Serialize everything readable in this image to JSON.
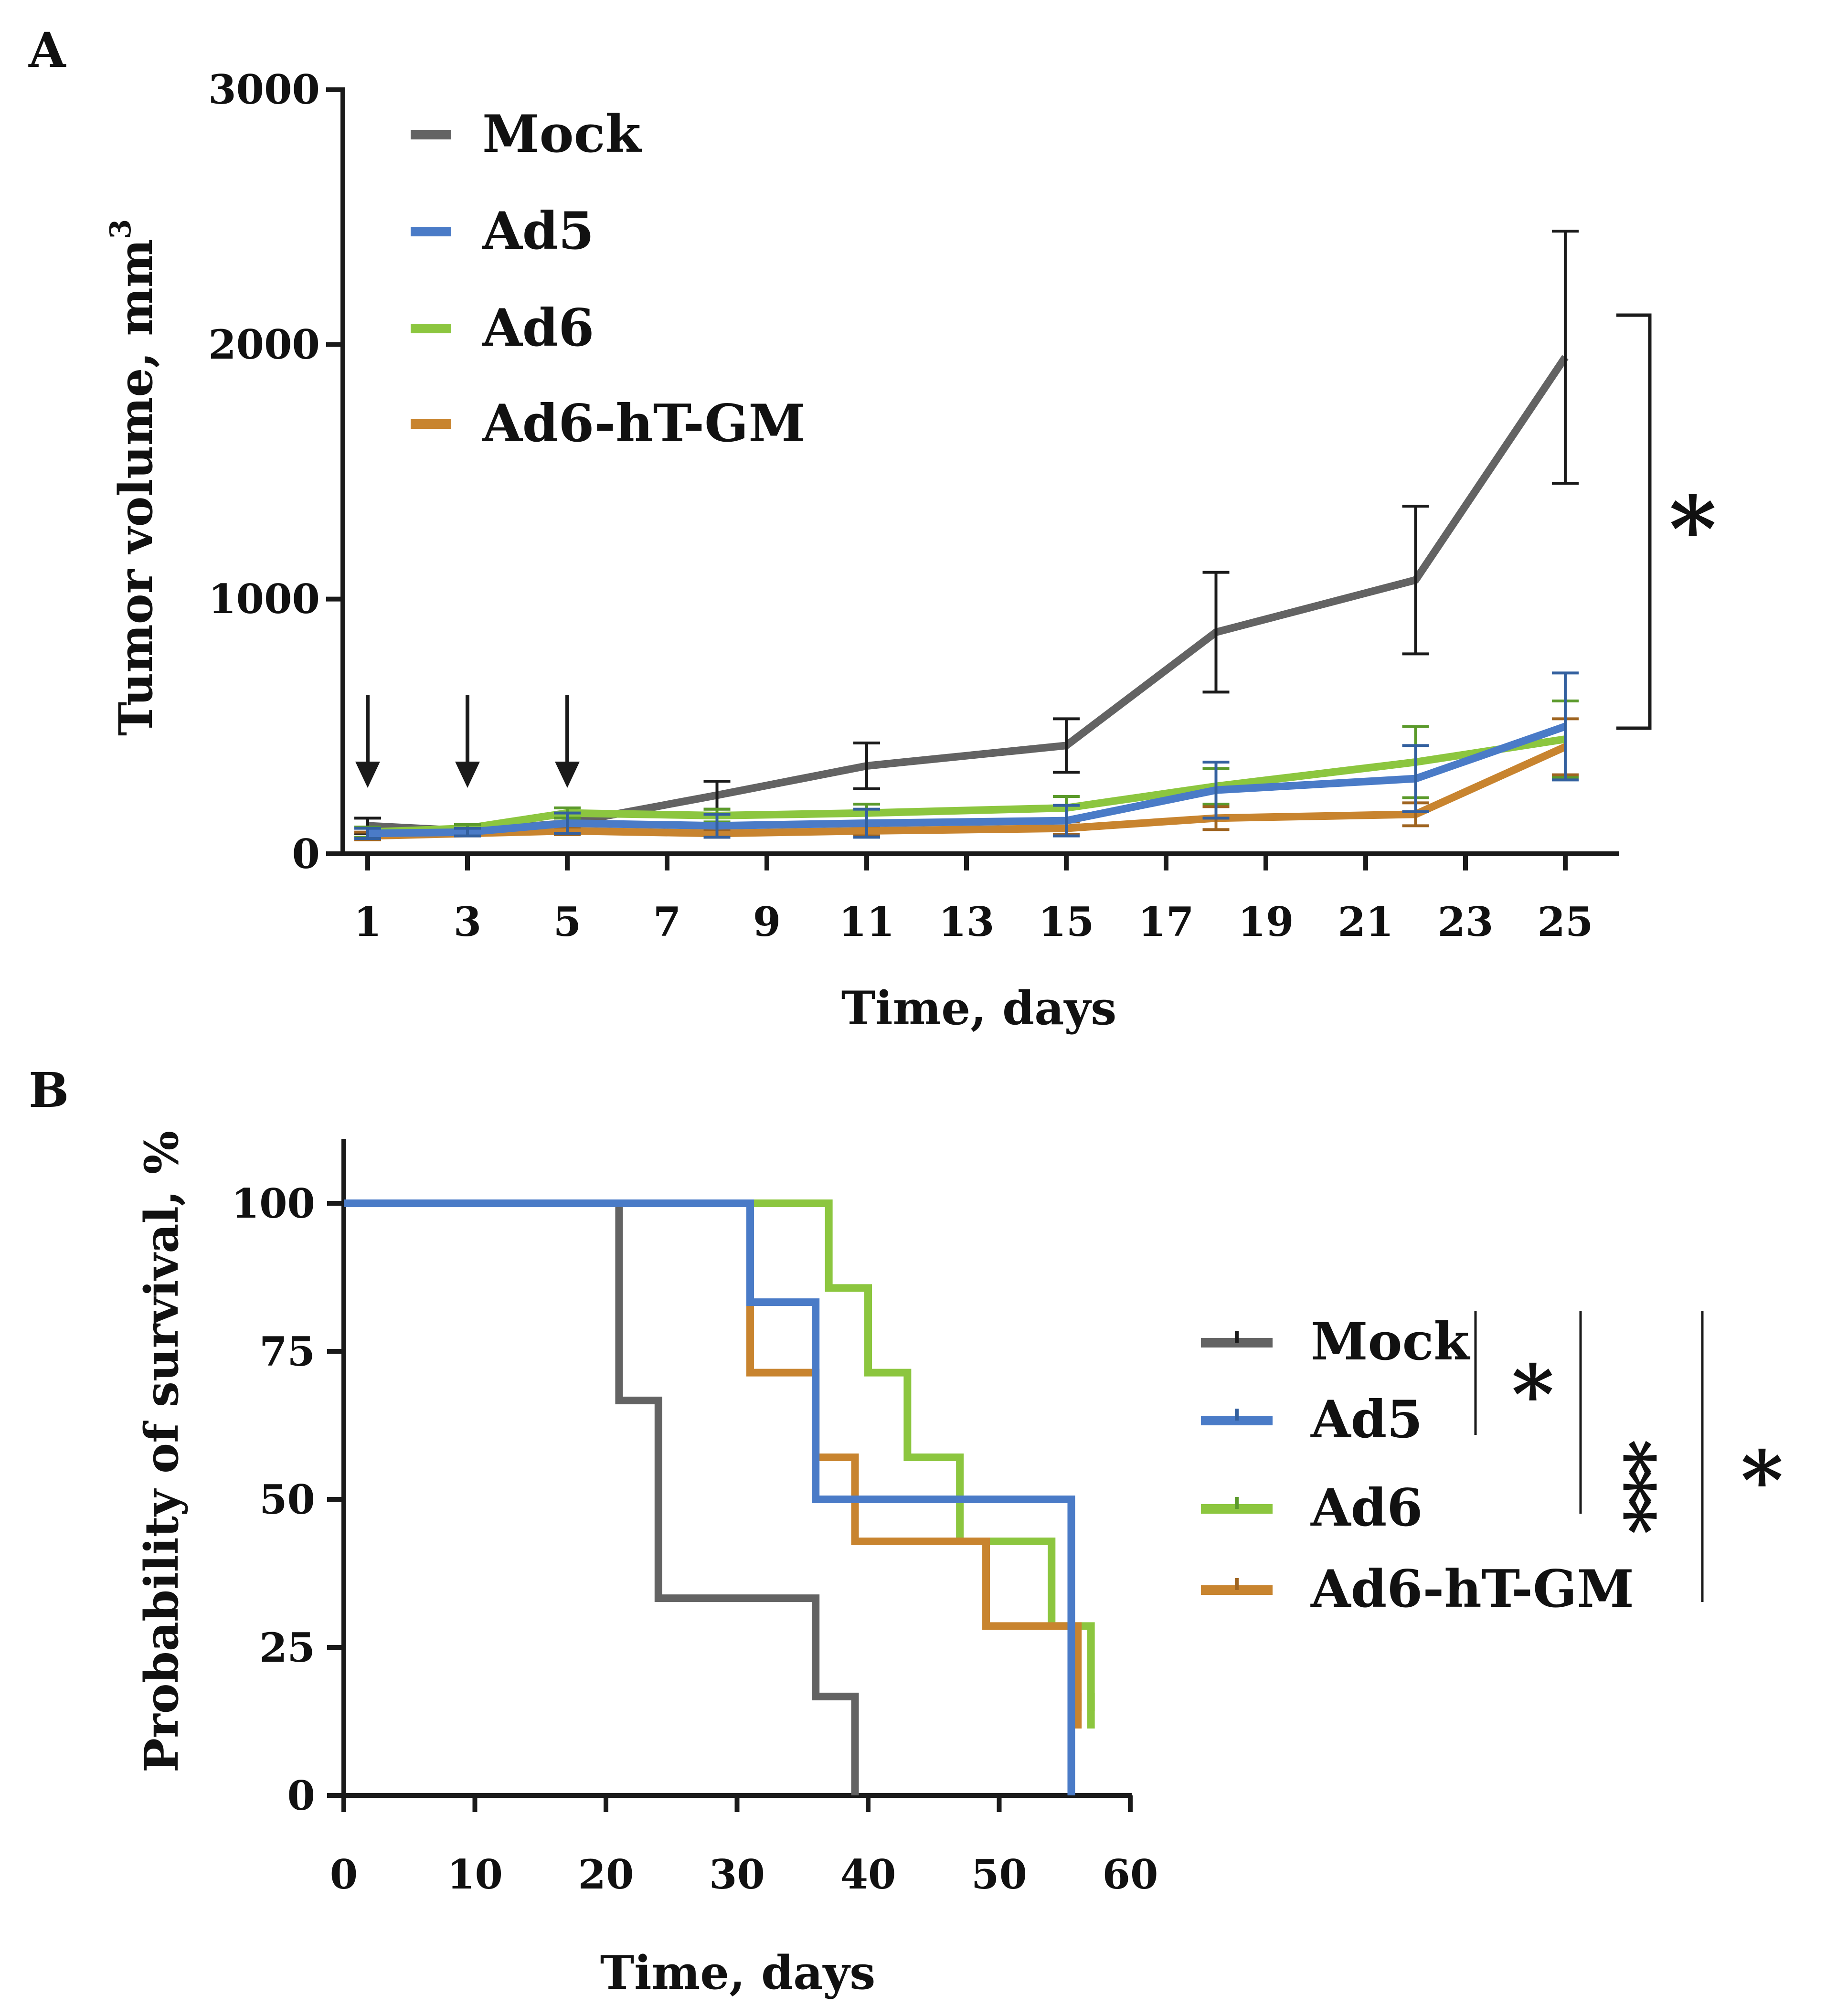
{
  "colors": {
    "mock": "#636363",
    "ad5": "#4a7bc7",
    "ad6": "#8cc63f",
    "ad6hTGM": "#c8842f",
    "ad5_text": "#33609f",
    "ad6_text": "#5b9a2b",
    "ad6hTGM_text": "#9f6420",
    "axis": "#1a1a1a"
  },
  "chart_data": [
    {
      "panel": "A",
      "type": "line",
      "xlabel": "Time, days",
      "ylabel": "Tumor volume, mm",
      "ylabel_superscript": "3",
      "xticks": [
        1,
        3,
        5,
        7,
        9,
        11,
        13,
        15,
        17,
        19,
        21,
        23,
        25
      ],
      "yticks": [
        0,
        1000,
        2000,
        3000
      ],
      "xlim": [
        0.6,
        26
      ],
      "ylim": [
        0,
        3000
      ],
      "injection_arrows_days": [
        1,
        3,
        5
      ],
      "significance": "*",
      "series": [
        {
          "name": "Mock",
          "key": "mock",
          "x": [
            1,
            3,
            5,
            8,
            11,
            15,
            18,
            22,
            25
          ],
          "y": [
            110,
            90,
            120,
            230,
            345,
            425,
            870,
            1075,
            1950
          ],
          "err": [
            30,
            15,
            30,
            55,
            90,
            105,
            235,
            290,
            495
          ]
        },
        {
          "name": "Ad5",
          "key": "ad5",
          "x": [
            1,
            3,
            5,
            8,
            11,
            15,
            18,
            22,
            25
          ],
          "y": [
            80,
            85,
            120,
            110,
            120,
            130,
            250,
            295,
            500
          ],
          "err": [
            20,
            15,
            40,
            45,
            55,
            60,
            110,
            130,
            210
          ]
        },
        {
          "name": "Ad6",
          "key": "ad6",
          "x": [
            1,
            3,
            5,
            8,
            11,
            15,
            18,
            22,
            25
          ],
          "y": [
            85,
            100,
            160,
            150,
            160,
            180,
            265,
            360,
            450
          ],
          "err": [
            20,
            15,
            20,
            25,
            35,
            45,
            70,
            140,
            150
          ]
        },
        {
          "name": "Ad6-hT-GM",
          "key": "ad6hTGM",
          "x": [
            1,
            3,
            5,
            8,
            11,
            15,
            18,
            22,
            25
          ],
          "y": [
            70,
            80,
            90,
            80,
            90,
            100,
            140,
            155,
            420
          ],
          "err": [
            15,
            10,
            15,
            15,
            20,
            25,
            45,
            45,
            110
          ]
        }
      ]
    },
    {
      "panel": "B",
      "type": "line",
      "subtype": "kaplan-meier step",
      "xlabel": "Time, days",
      "ylabel": "Probability of survival, %",
      "xticks": [
        0,
        10,
        20,
        30,
        40,
        50,
        60
      ],
      "yticks": [
        0,
        25,
        50,
        75,
        100
      ],
      "xlim": [
        0,
        60
      ],
      "ylim": [
        0,
        110
      ],
      "significance": [
        "*",
        "***",
        "*"
      ],
      "series": [
        {
          "name": "Mock",
          "key": "mock",
          "x": [
            0,
            21,
            24,
            36,
            39
          ],
          "y": [
            100,
            66.7,
            33.3,
            16.7,
            0
          ]
        },
        {
          "name": "Ad5",
          "key": "ad5",
          "x": [
            0,
            31,
            36,
            55.5
          ],
          "y": [
            100,
            83.3,
            50,
            0
          ]
        },
        {
          "name": "Ad6",
          "key": "ad6",
          "x": [
            0,
            37,
            40,
            43,
            47,
            54,
            57
          ],
          "y": [
            100,
            85.7,
            71.4,
            57.1,
            42.9,
            28.6,
            14.3
          ]
        },
        {
          "name": "Ad6-hT-GM",
          "key": "ad6hTGM",
          "x": [
            0,
            31,
            36,
            39,
            49,
            56
          ],
          "y": [
            100,
            71.4,
            57.1,
            42.9,
            28.6,
            14.3
          ]
        }
      ]
    }
  ],
  "panelA": {
    "label": "A",
    "legend": [
      "Mock",
      "Ad5",
      "Ad6",
      "Ad6-hT-GM"
    ],
    "yticklabels": [
      "0",
      "1000",
      "2000",
      "3000"
    ],
    "xticklabels": [
      "1",
      "3",
      "5",
      "7",
      "9",
      "11",
      "13",
      "15",
      "17",
      "19",
      "21",
      "23",
      "25"
    ]
  },
  "panelB": {
    "label": "B",
    "legend": [
      "Mock",
      "Ad5",
      "Ad6",
      "Ad6-hT-GM"
    ],
    "yticklabels": [
      "0",
      "25",
      "50",
      "75",
      "100"
    ],
    "xticklabels": [
      "0",
      "10",
      "20",
      "30",
      "40",
      "50",
      "60"
    ]
  }
}
